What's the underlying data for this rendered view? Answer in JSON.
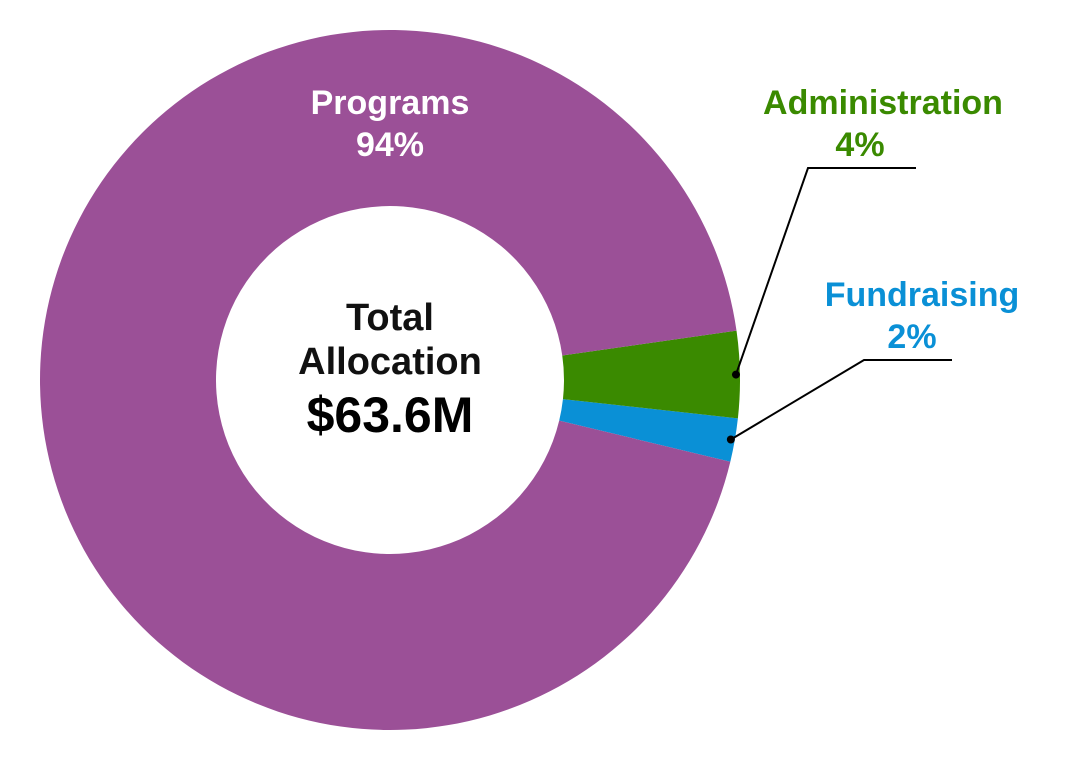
{
  "chart_data": {
    "type": "pie",
    "style": "donut",
    "title": "",
    "center": {
      "line1": "Total",
      "line2": "Allocation",
      "value": "$63.6M"
    },
    "slices": [
      {
        "name": "Programs",
        "value": 94,
        "display": "94%",
        "color": "#9B5097",
        "label_color": "#ffffff"
      },
      {
        "name": "Administration",
        "value": 4,
        "display": "4%",
        "color": "#3A8A00",
        "label_color": "#3A8A00"
      },
      {
        "name": "Fundraising",
        "value": 2,
        "display": "2%",
        "color": "#0A90D6",
        "label_color": "#0A90D6"
      }
    ],
    "units": "%",
    "legend": "none"
  }
}
